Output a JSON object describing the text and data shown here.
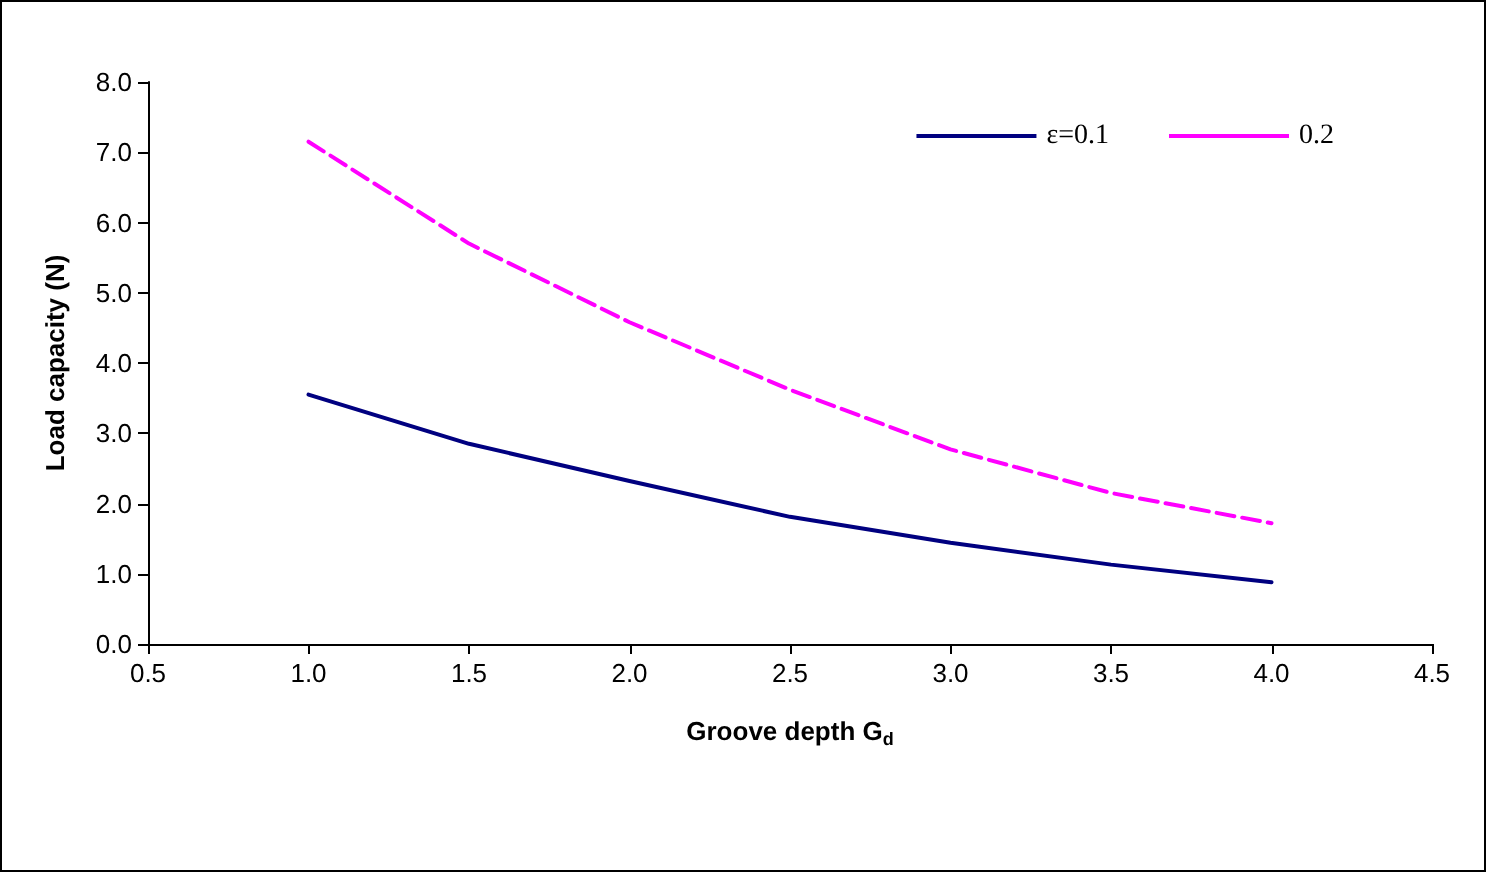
{
  "chart_data": {
    "type": "line",
    "xlabel": "Groove depth G$_{d}$",
    "ylabel": "Load capacity (N)",
    "x": [
      1,
      1.5,
      2,
      2.5,
      3,
      3.5,
      4
    ],
    "series": [
      {
        "name": "ε=0.1",
        "color": "#000080",
        "values": [
          3.55,
          2.85,
          2.32,
          1.81,
          1.44,
          1.13,
          0.88
        ],
        "line_style": "solid"
      },
      {
        "name": "0.2",
        "color": "#ff00ff",
        "values": [
          7.15,
          5.7,
          4.58,
          3.62,
          2.77,
          2.15,
          1.72
        ],
        "line_style": "dashed"
      }
    ],
    "xlim": [
      0.5,
      4.5
    ],
    "xticks": [
      0.5,
      {
        "value": 1,
        "label": "1.0"
      },
      1.5,
      {
        "value": 2,
        "label": "2.0"
      },
      2.5,
      {
        "value": 3,
        "label": "3.0"
      },
      3.5,
      {
        "value": 4,
        "label": "4.0"
      },
      4.5
    ],
    "ylim": [
      0,
      8
    ],
    "yticks": [
      {
        "value": 0,
        "label": "0.0"
      },
      {
        "value": 1,
        "label": "1.0"
      },
      {
        "value": 2,
        "label": "2.0"
      },
      {
        "value": 3,
        "label": "3.0"
      },
      {
        "value": 4,
        "label": "4.0"
      },
      {
        "value": 5,
        "label": "5.0"
      },
      {
        "value": 6,
        "label": "6.0"
      },
      {
        "value": 7,
        "label": "7.0"
      },
      {
        "value": 8,
        "label": "8.0"
      }
    ],
    "grid": false,
    "legend": "top right",
    "marker": "none"
  }
}
